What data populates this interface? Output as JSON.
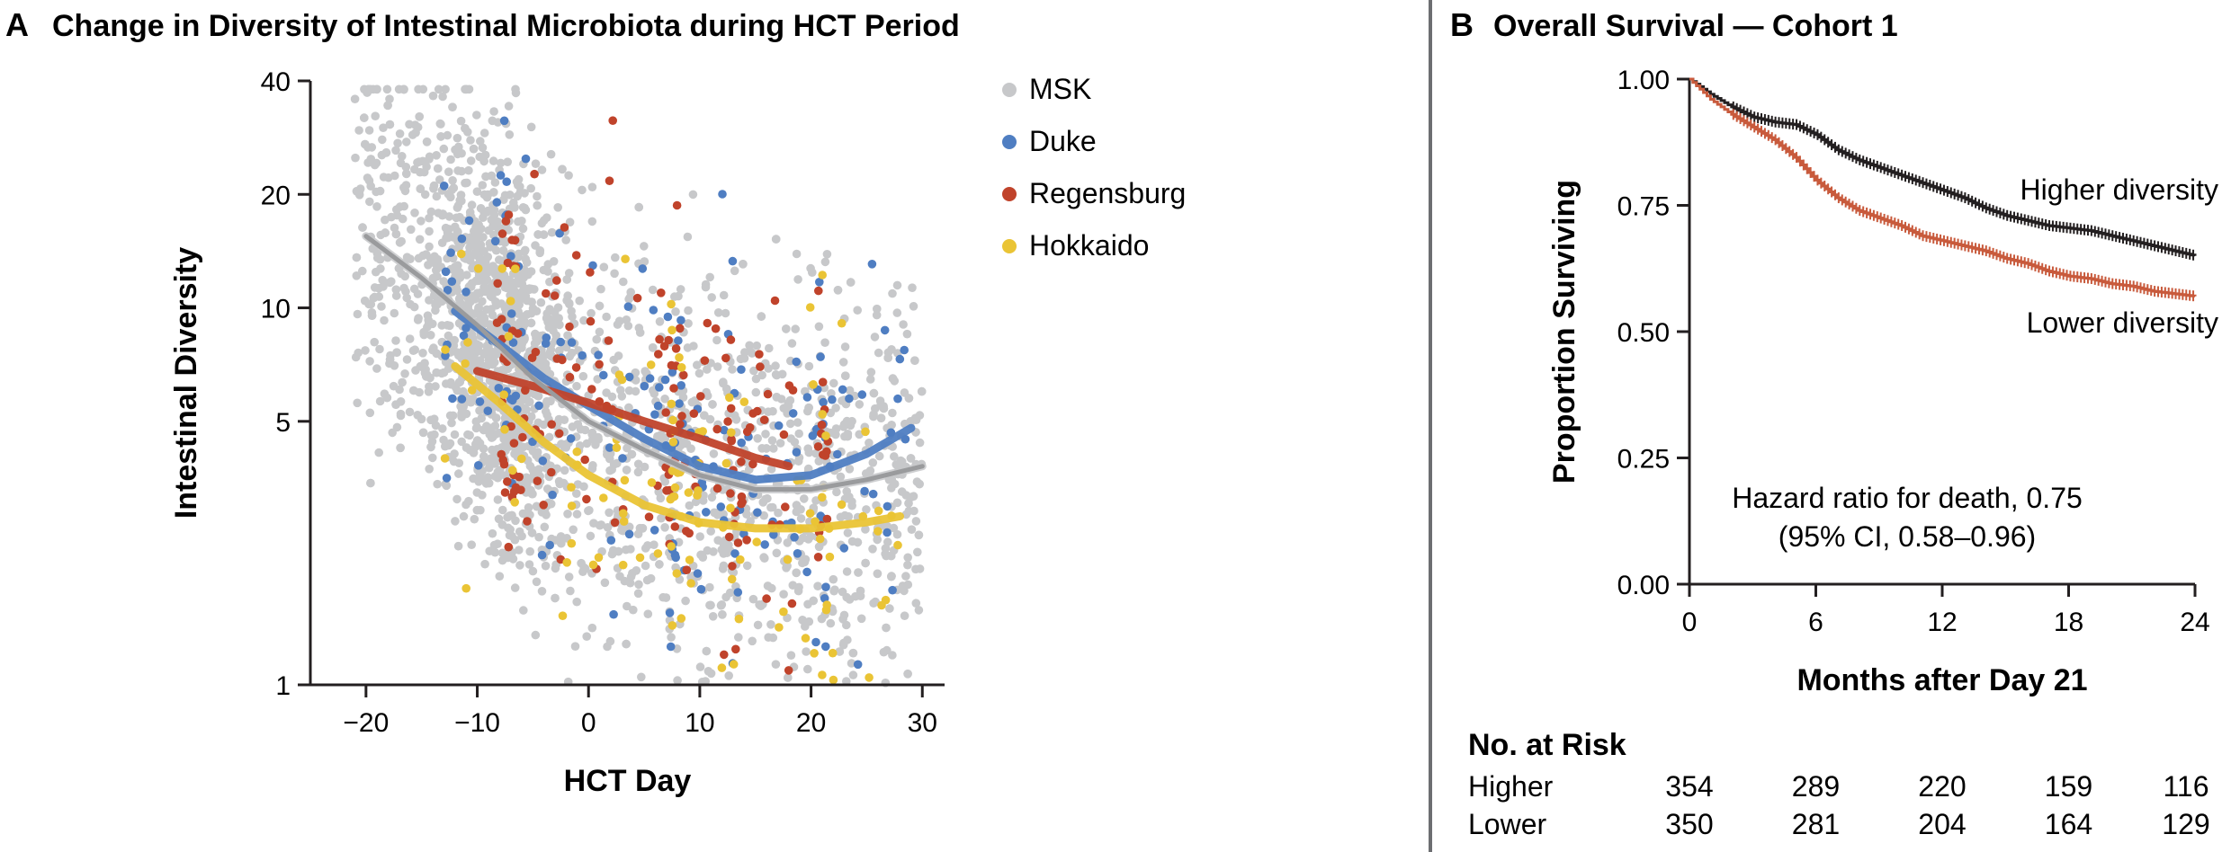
{
  "panel_a": {
    "letter": "A",
    "title": "Change in Diversity of Intestinal Microbiota during HCT Period"
  },
  "panel_b": {
    "letter": "B",
    "title": "Overall Survival — Cohort 1",
    "risk_table": {
      "heading": "No. at Risk",
      "rows": [
        {
          "label": "Higher",
          "values": [
            "354",
            "289",
            "220",
            "159",
            "116"
          ]
        },
        {
          "label": "Lower",
          "values": [
            "350",
            "281",
            "204",
            "164",
            "129"
          ]
        }
      ]
    }
  },
  "colors": {
    "msk": "#c7c8ca",
    "duke": "#4f7ec2",
    "regensburg": "#c0432b",
    "hokkaido": "#eac435",
    "higher_line": "#231f20",
    "lower_line": "#c85a3c",
    "divider": "#6d6e71"
  },
  "chart_data": [
    {
      "type": "scatter",
      "title": "Change in Diversity of Intestinal Microbiota during HCT Period",
      "xlabel": "HCT Day",
      "ylabel": "Intestinal Diversity",
      "xlim": [
        -25,
        32
      ],
      "ylim": [
        1,
        40
      ],
      "y_scale": "log",
      "xticks": [
        "−20",
        "−10",
        "0",
        "10",
        "20",
        "30"
      ],
      "xtick_values": [
        -20,
        -10,
        0,
        10,
        20,
        30
      ],
      "yticks": [
        "1",
        "5",
        "10",
        "20",
        "40"
      ],
      "ytick_values": [
        1,
        5,
        10,
        20,
        40
      ],
      "legend_position": "top-right",
      "series": [
        {
          "name": "MSK",
          "color": "#c7c8ca",
          "trend": [
            [
              -20,
              15.5
            ],
            [
              -15,
              12.0
            ],
            [
              -10,
              9.0
            ],
            [
              -5,
              6.5
            ],
            [
              0,
              5.0
            ],
            [
              5,
              4.2
            ],
            [
              10,
              3.6
            ],
            [
              15,
              3.3
            ],
            [
              20,
              3.3
            ],
            [
              25,
              3.5
            ],
            [
              30,
              3.8
            ]
          ]
        },
        {
          "name": "Duke",
          "color": "#4f7ec2",
          "trend": [
            [
              -12,
              9.8
            ],
            [
              -8,
              8.0
            ],
            [
              -4,
              6.5
            ],
            [
              0,
              5.5
            ],
            [
              5,
              4.5
            ],
            [
              10,
              3.8
            ],
            [
              15,
              3.5
            ],
            [
              20,
              3.6
            ],
            [
              25,
              4.1
            ],
            [
              29,
              4.8
            ]
          ]
        },
        {
          "name": "Regensburg",
          "color": "#c0432b",
          "trend": [
            [
              -10,
              6.8
            ],
            [
              -5,
              6.2
            ],
            [
              0,
              5.6
            ],
            [
              5,
              5.0
            ],
            [
              10,
              4.5
            ],
            [
              15,
              4.0
            ],
            [
              18,
              3.8
            ]
          ]
        },
        {
          "name": "Hokkaido",
          "color": "#eac435",
          "trend": [
            [
              -12,
              7.0
            ],
            [
              -8,
              5.6
            ],
            [
              -4,
              4.4
            ],
            [
              0,
              3.6
            ],
            [
              5,
              3.0
            ],
            [
              10,
              2.7
            ],
            [
              15,
              2.6
            ],
            [
              20,
              2.6
            ],
            [
              25,
              2.7
            ],
            [
              28,
              2.8
            ]
          ]
        }
      ]
    },
    {
      "type": "line",
      "title": "Overall Survival — Cohort 1",
      "xlabel": "Months after Day 21",
      "ylabel": "Proportion Surviving",
      "xlim": [
        0,
        24
      ],
      "ylim": [
        0,
        1
      ],
      "xticks": [
        "0",
        "6",
        "12",
        "18",
        "24"
      ],
      "xtick_values": [
        0,
        6,
        12,
        18,
        24
      ],
      "yticks": [
        "0.00",
        "0.25",
        "0.50",
        "0.75",
        "1.00"
      ],
      "ytick_values": [
        0,
        0.25,
        0.5,
        0.75,
        1.0
      ],
      "annotation_lines": [
        "Hazard ratio for death, 0.75",
        "(95% CI, 0.58–0.96)"
      ],
      "series": [
        {
          "name": "Higher diversity",
          "color": "#231f20",
          "x": [
            0,
            1,
            2,
            3,
            4,
            5,
            6,
            7,
            8,
            9,
            10,
            11,
            12,
            13,
            14,
            15,
            16,
            17,
            18,
            19,
            20,
            21,
            22,
            23,
            24
          ],
          "y": [
            1.0,
            0.97,
            0.945,
            0.925,
            0.915,
            0.91,
            0.89,
            0.86,
            0.84,
            0.825,
            0.81,
            0.795,
            0.78,
            0.765,
            0.745,
            0.73,
            0.72,
            0.71,
            0.705,
            0.7,
            0.69,
            0.68,
            0.67,
            0.66,
            0.65
          ]
        },
        {
          "name": "Lower diversity",
          "color": "#c85a3c",
          "x": [
            0,
            1,
            2,
            3,
            4,
            5,
            6,
            7,
            8,
            9,
            10,
            11,
            12,
            13,
            14,
            15,
            16,
            17,
            18,
            19,
            20,
            21,
            22,
            23,
            24
          ],
          "y": [
            1.0,
            0.96,
            0.93,
            0.905,
            0.88,
            0.845,
            0.8,
            0.765,
            0.74,
            0.725,
            0.71,
            0.69,
            0.68,
            0.67,
            0.66,
            0.645,
            0.635,
            0.62,
            0.61,
            0.605,
            0.595,
            0.59,
            0.58,
            0.575,
            0.57
          ]
        }
      ]
    }
  ]
}
